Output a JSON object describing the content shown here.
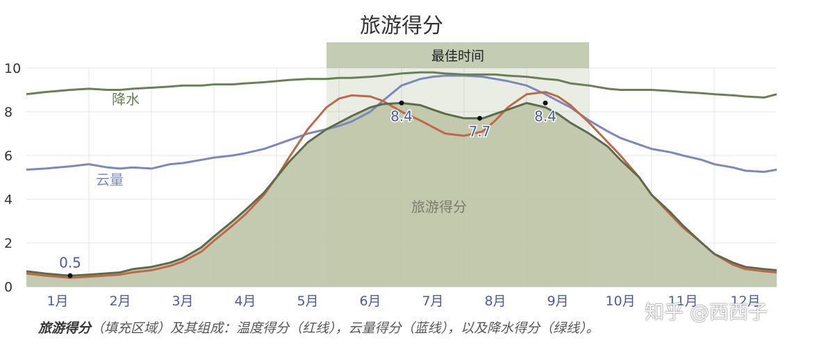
{
  "chart_data": {
    "type": "area",
    "title": "旅游得分",
    "categories": [
      "1月",
      "2月",
      "3月",
      "4月",
      "5月",
      "6月",
      "7月",
      "8月",
      "9月",
      "10月",
      "11月",
      "12月"
    ],
    "ylim": [
      0,
      10
    ],
    "yticks": [
      "0",
      "2",
      "4",
      "6",
      "8",
      "10"
    ],
    "grid": true,
    "best_time_label": "最佳时间",
    "best_time_range": [
      5.3,
      9.5
    ],
    "series": [
      {
        "key": "tourism",
        "name": "旅游得分",
        "color": "#bfc6a8",
        "x": [
          0.5,
          0.8,
          1.0,
          1.2,
          1.5,
          2.0,
          2.2,
          2.5,
          2.8,
          3.0,
          3.3,
          3.5,
          3.8,
          4.0,
          4.3,
          4.5,
          4.7,
          5.0,
          5.3,
          5.5,
          5.7,
          6.0,
          6.2,
          6.5,
          6.8,
          7.0,
          7.2,
          7.5,
          7.8,
          8.0,
          8.2,
          8.5,
          8.8,
          9.0,
          9.2,
          9.5,
          9.8,
          10.0,
          10.3,
          10.5,
          10.8,
          11.0,
          11.3,
          11.5,
          11.8,
          12.0,
          12.3,
          12.5
        ],
        "y": [
          0.7,
          0.6,
          0.55,
          0.5,
          0.55,
          0.65,
          0.8,
          0.9,
          1.1,
          1.3,
          1.8,
          2.3,
          3.0,
          3.5,
          4.3,
          5.0,
          5.7,
          6.6,
          7.2,
          7.5,
          7.8,
          8.2,
          8.35,
          8.4,
          8.3,
          8.1,
          7.9,
          7.7,
          7.7,
          7.9,
          8.1,
          8.4,
          8.2,
          7.9,
          7.5,
          7.0,
          6.4,
          5.8,
          5.0,
          4.2,
          3.4,
          2.8,
          2.0,
          1.5,
          1.1,
          0.9,
          0.8,
          0.75
        ]
      },
      {
        "key": "temperature",
        "name": "温度得分",
        "color": "#c0674a",
        "x": [
          0.5,
          0.8,
          1.0,
          1.2,
          1.5,
          2.0,
          2.2,
          2.5,
          2.8,
          3.0,
          3.3,
          3.5,
          3.8,
          4.0,
          4.3,
          4.5,
          4.7,
          5.0,
          5.3,
          5.5,
          5.7,
          6.0,
          6.2,
          6.5,
          6.8,
          7.0,
          7.2,
          7.5,
          7.8,
          8.0,
          8.2,
          8.5,
          8.8,
          9.0,
          9.2,
          9.5,
          9.8,
          10.0,
          10.3,
          10.5,
          10.8,
          11.0,
          11.3,
          11.5,
          11.8,
          12.0,
          12.3,
          12.5
        ],
        "y": [
          0.6,
          0.5,
          0.45,
          0.4,
          0.45,
          0.55,
          0.65,
          0.75,
          0.95,
          1.15,
          1.6,
          2.1,
          2.8,
          3.3,
          4.2,
          5.0,
          5.9,
          7.2,
          8.2,
          8.6,
          8.75,
          8.7,
          8.5,
          8.0,
          7.6,
          7.3,
          7.0,
          6.9,
          7.1,
          7.6,
          8.2,
          8.8,
          8.9,
          8.7,
          8.3,
          7.5,
          6.6,
          6.0,
          5.0,
          4.2,
          3.3,
          2.7,
          2.0,
          1.5,
          1.0,
          0.8,
          0.7,
          0.65
        ]
      },
      {
        "key": "cloud",
        "name": "云量",
        "color": "#7b88bd",
        "x": [
          0.5,
          0.8,
          1.0,
          1.2,
          1.5,
          1.8,
          2.0,
          2.2,
          2.5,
          2.8,
          3.0,
          3.3,
          3.5,
          3.8,
          4.0,
          4.3,
          4.5,
          4.7,
          5.0,
          5.3,
          5.5,
          5.7,
          6.0,
          6.2,
          6.5,
          6.8,
          7.0,
          7.2,
          7.5,
          7.8,
          8.0,
          8.2,
          8.5,
          8.8,
          9.0,
          9.2,
          9.5,
          9.8,
          10.0,
          10.3,
          10.5,
          10.8,
          11.0,
          11.3,
          11.5,
          11.8,
          12.0,
          12.3,
          12.5
        ],
        "y": [
          5.35,
          5.4,
          5.45,
          5.5,
          5.6,
          5.45,
          5.4,
          5.45,
          5.4,
          5.6,
          5.65,
          5.8,
          5.9,
          6.0,
          6.1,
          6.3,
          6.5,
          6.7,
          7.0,
          7.2,
          7.35,
          7.55,
          8.0,
          8.5,
          9.2,
          9.5,
          9.6,
          9.65,
          9.65,
          9.6,
          9.5,
          9.4,
          9.2,
          8.8,
          8.5,
          8.2,
          7.6,
          7.1,
          6.8,
          6.5,
          6.3,
          6.15,
          6.0,
          5.8,
          5.6,
          5.45,
          5.3,
          5.25,
          5.35
        ]
      },
      {
        "key": "precipitation",
        "name": "降水",
        "color": "#6a7f55",
        "x": [
          0.5,
          0.8,
          1.0,
          1.2,
          1.5,
          1.8,
          2.0,
          2.2,
          2.5,
          2.8,
          3.0,
          3.3,
          3.5,
          3.8,
          4.0,
          4.3,
          4.5,
          4.7,
          5.0,
          5.3,
          5.5,
          5.7,
          6.0,
          6.2,
          6.5,
          6.8,
          7.0,
          7.2,
          7.5,
          7.8,
          8.0,
          8.2,
          8.5,
          8.8,
          9.0,
          9.2,
          9.5,
          9.8,
          10.0,
          10.3,
          10.5,
          10.8,
          11.0,
          11.3,
          11.5,
          11.8,
          12.0,
          12.3,
          12.5
        ],
        "y": [
          8.8,
          8.9,
          8.95,
          9.0,
          9.05,
          9.0,
          9.0,
          9.05,
          9.1,
          9.15,
          9.2,
          9.2,
          9.25,
          9.25,
          9.3,
          9.35,
          9.4,
          9.45,
          9.5,
          9.5,
          9.55,
          9.55,
          9.6,
          9.65,
          9.75,
          9.8,
          9.8,
          9.75,
          9.7,
          9.7,
          9.7,
          9.65,
          9.6,
          9.5,
          9.45,
          9.3,
          9.2,
          9.05,
          9.0,
          9.0,
          9.0,
          8.95,
          8.9,
          8.85,
          8.8,
          8.75,
          8.7,
          8.65,
          8.8
        ]
      }
    ],
    "annotations": [
      {
        "text": "0.5",
        "x": 1.2,
        "y": 0.5
      },
      {
        "text": "8.4",
        "x": 6.5,
        "y": 8.4
      },
      {
        "text": "7.7",
        "x": 7.75,
        "y": 7.7
      },
      {
        "text": "8.4",
        "x": 8.8,
        "y": 8.4
      }
    ],
    "series_labels": [
      {
        "text": "降水",
        "color": "#6a7f55"
      },
      {
        "text": "云量",
        "color": "#7b88bd"
      },
      {
        "text": "旅游得分",
        "color": "#7c7c6e"
      }
    ]
  },
  "caption": {
    "lead": "旅游得分",
    "rest": "（填充区域）及其组成：温度得分（红线），云量得分（蓝线），以及降水得分（绿线）。"
  },
  "watermark": "知乎 @西西子"
}
